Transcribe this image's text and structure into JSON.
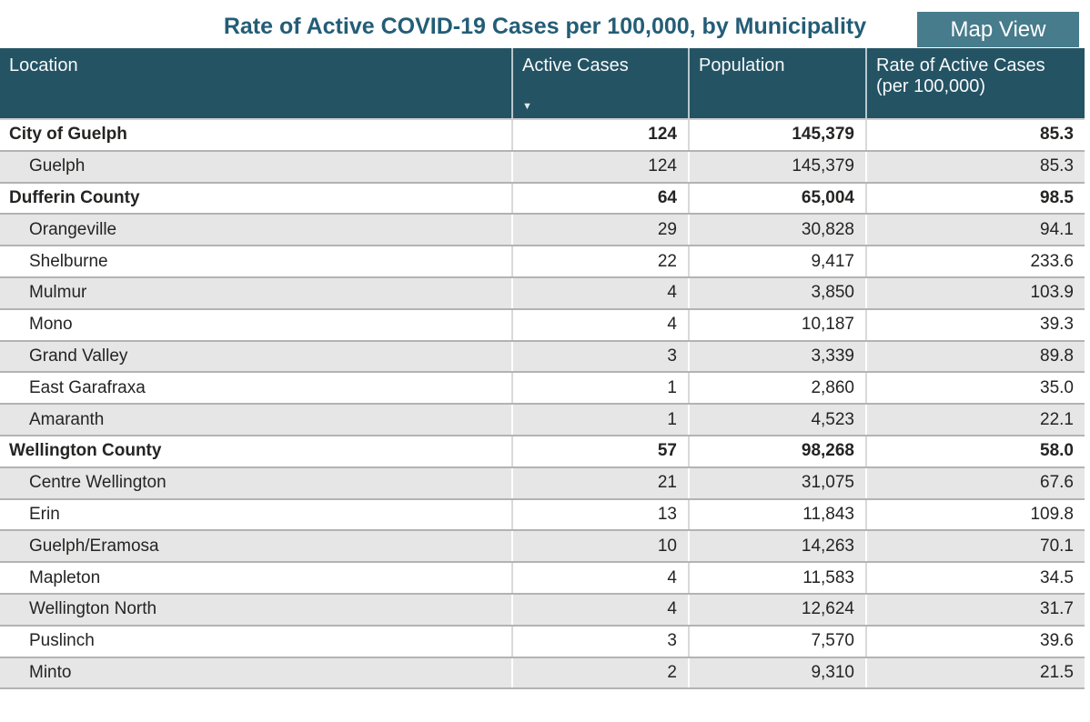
{
  "title": "Rate of Active COVID-19 Cases per 100,000, by Municipality",
  "toolbar": {
    "map_view_label": "Map View"
  },
  "colors": {
    "header_bg": "#245364",
    "title_text": "#235d77",
    "button_bg": "#477c8c",
    "banded_row_bg": "#e6e6e6",
    "row_border": "#b3b3b3"
  },
  "table": {
    "sort_icon": "▼",
    "sorted_column": "Active Cases",
    "sort_direction": "descending",
    "columns": [
      {
        "label": "Location"
      },
      {
        "label": "Active Cases"
      },
      {
        "label": "Population"
      },
      {
        "label": "Rate of Active Cases (per 100,000)"
      }
    ],
    "rows": [
      {
        "location": "City of Guelph",
        "active_cases": "124",
        "population": "145,379",
        "rate": "85.3",
        "bold": true
      },
      {
        "location": "Guelph",
        "active_cases": "124",
        "population": "145,379",
        "rate": "85.3",
        "bold": false
      },
      {
        "location": "Dufferin County",
        "active_cases": "64",
        "population": "65,004",
        "rate": "98.5",
        "bold": true
      },
      {
        "location": "Orangeville",
        "active_cases": "29",
        "population": "30,828",
        "rate": "94.1",
        "bold": false
      },
      {
        "location": "Shelburne",
        "active_cases": "22",
        "population": "9,417",
        "rate": "233.6",
        "bold": false
      },
      {
        "location": "Mulmur",
        "active_cases": "4",
        "population": "3,850",
        "rate": "103.9",
        "bold": false
      },
      {
        "location": "Mono",
        "active_cases": "4",
        "population": "10,187",
        "rate": "39.3",
        "bold": false
      },
      {
        "location": "Grand Valley",
        "active_cases": "3",
        "population": "3,339",
        "rate": "89.8",
        "bold": false
      },
      {
        "location": "East Garafraxa",
        "active_cases": "1",
        "population": "2,860",
        "rate": "35.0",
        "bold": false
      },
      {
        "location": "Amaranth",
        "active_cases": "1",
        "population": "4,523",
        "rate": "22.1",
        "bold": false
      },
      {
        "location": "Wellington County",
        "active_cases": "57",
        "population": "98,268",
        "rate": "58.0",
        "bold": true
      },
      {
        "location": "Centre Wellington",
        "active_cases": "21",
        "population": "31,075",
        "rate": "67.6",
        "bold": false
      },
      {
        "location": "Erin",
        "active_cases": "13",
        "population": "11,843",
        "rate": "109.8",
        "bold": false
      },
      {
        "location": "Guelph/Eramosa",
        "active_cases": "10",
        "population": "14,263",
        "rate": "70.1",
        "bold": false
      },
      {
        "location": "Mapleton",
        "active_cases": "4",
        "population": "11,583",
        "rate": "34.5",
        "bold": false
      },
      {
        "location": "Wellington North",
        "active_cases": "4",
        "population": "12,624",
        "rate": "31.7",
        "bold": false
      },
      {
        "location": "Puslinch",
        "active_cases": "3",
        "population": "7,570",
        "rate": "39.6",
        "bold": false
      },
      {
        "location": "Minto",
        "active_cases": "2",
        "population": "9,310",
        "rate": "21.5",
        "bold": false
      }
    ]
  }
}
